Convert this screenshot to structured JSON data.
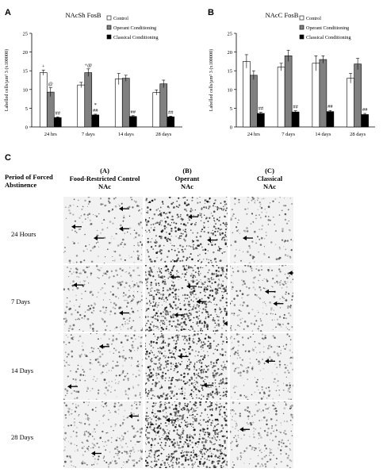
{
  "panels": {
    "a": "A",
    "b": "B",
    "c": "C"
  },
  "chart_data": [
    {
      "type": "bar",
      "title": "NAcSh FosB",
      "ylabel": "Labelled cells/µm² 3 (x100000)",
      "ylim": [
        0,
        25
      ],
      "yticks": [
        "0",
        "5",
        "10",
        "15",
        "20",
        "25"
      ],
      "categories": [
        "24 hrs",
        "7 days",
        "14 days",
        "28 days"
      ],
      "legend_position": "top-right",
      "series": [
        {
          "name": "Control",
          "color": "#ffffff",
          "values": [
            14.5,
            11.2,
            12.8,
            9.2
          ],
          "errors": [
            0.7,
            0.7,
            1.5,
            0.7
          ]
        },
        {
          "name": "Operant Conditioning",
          "color": "#808080",
          "values": [
            9.3,
            14.5,
            13.0,
            11.5
          ],
          "errors": [
            1.2,
            1.0,
            0.8,
            1.0
          ]
        },
        {
          "name": "Classical Conditioning",
          "color": "#000000",
          "values": [
            2.5,
            3.2,
            2.8,
            2.7
          ],
          "errors": [
            0.2,
            0.2,
            0.2,
            0.2
          ]
        }
      ],
      "annotations": [
        {
          "category": 0,
          "series": 0,
          "text": "+"
        },
        {
          "category": 0,
          "series": 1,
          "text": "@"
        },
        {
          "category": 0,
          "series": 2,
          "text": "##"
        },
        {
          "category": 1,
          "series": 1,
          "text": "+@"
        },
        {
          "category": 1,
          "series": 2,
          "text": "##"
        },
        {
          "category": 1,
          "series": 2,
          "text": "*"
        },
        {
          "category": 2,
          "series": 2,
          "text": "##"
        },
        {
          "category": 3,
          "series": 2,
          "text": "##"
        }
      ]
    },
    {
      "type": "bar",
      "title": "NAcC FosB",
      "ylabel": "Labelled cells/µm² 3 (x100000)",
      "ylim": [
        0,
        25
      ],
      "yticks": [
        "0",
        "5",
        "10",
        "15",
        "20",
        "25"
      ],
      "categories": [
        "24 hrs",
        "7 days",
        "14 days",
        "28 days"
      ],
      "legend_position": "top-right",
      "series": [
        {
          "name": "Control",
          "color": "#ffffff",
          "values": [
            17.5,
            16.0,
            17.0,
            13.0
          ],
          "errors": [
            1.8,
            1.0,
            2.0,
            1.3
          ]
        },
        {
          "name": "Operant Conditioning",
          "color": "#808080",
          "values": [
            13.8,
            19.0,
            18.0,
            16.8
          ],
          "errors": [
            1.2,
            1.5,
            1.0,
            1.5
          ]
        },
        {
          "name": "Classical Conditioning",
          "color": "#000000",
          "values": [
            3.6,
            4.0,
            4.1,
            3.3
          ],
          "errors": [
            0.3,
            0.3,
            0.3,
            0.3
          ]
        }
      ],
      "annotations": [
        {
          "category": 0,
          "series": 2,
          "text": "##"
        },
        {
          "category": 1,
          "series": 2,
          "text": "##"
        },
        {
          "category": 2,
          "series": 2,
          "text": "##"
        },
        {
          "category": 3,
          "series": 2,
          "text": "##"
        }
      ]
    }
  ],
  "section_c": {
    "row_header": "Period of Forced Abstinence",
    "columns": [
      {
        "letter": "(A)",
        "title": "Food-Restricted Control",
        "sub": "NAc",
        "density": 0.35
      },
      {
        "letter": "(B)",
        "title": "Operant",
        "sub": "NAc",
        "density": 1.0
      },
      {
        "letter": "(C)",
        "title": "Classical",
        "sub": "NAc",
        "density": 0.25
      }
    ],
    "rows": [
      "24 Hours",
      "7 Days",
      "14 Days",
      "28 Days"
    ],
    "row_density": [
      0.5,
      0.8,
      0.7,
      0.9
    ],
    "arrow_icon": "arrow-left-icon"
  }
}
